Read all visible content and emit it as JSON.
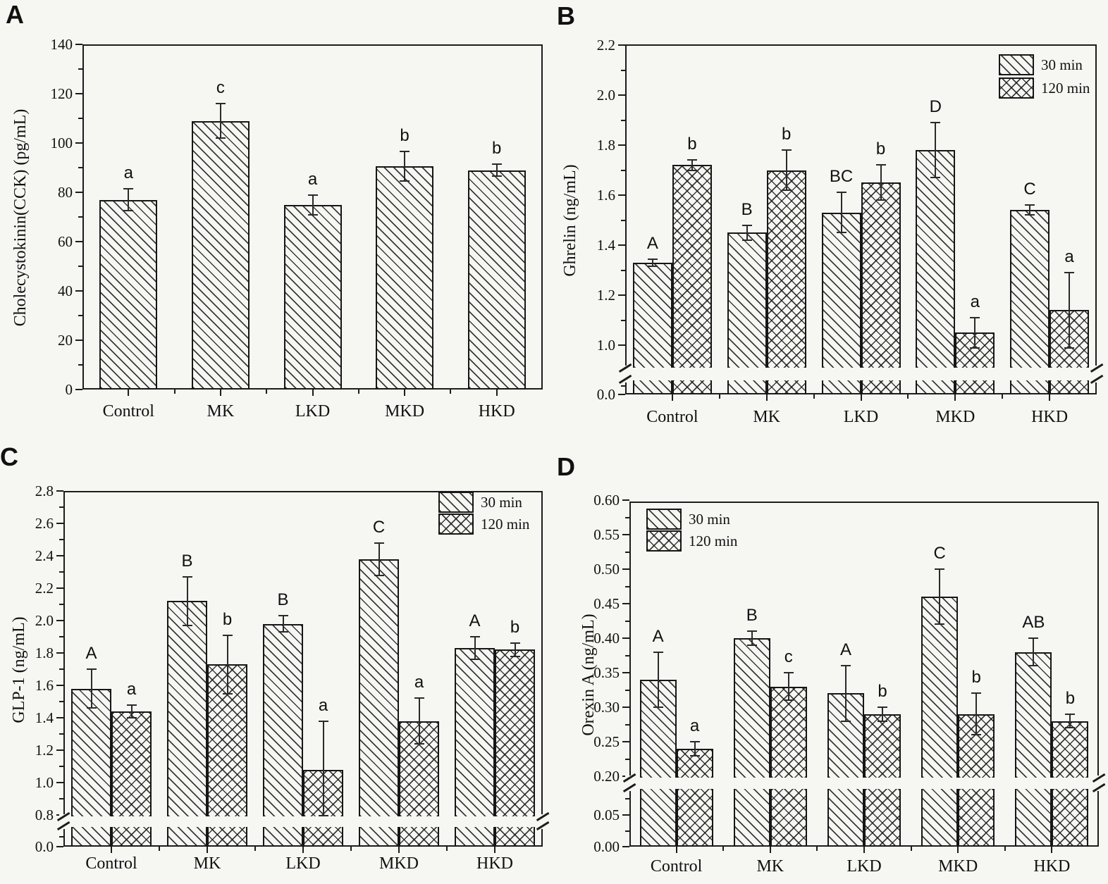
{
  "figure_type": "four-panel appetite hormone bar charts",
  "legend_labels": [
    "30 min",
    "120 min"
  ],
  "chart_data": [
    {
      "panel": "A",
      "type": "bar",
      "ylabel": "Cholecystokinin(CCK) (pg/mL)",
      "categories": [
        "Control",
        "MK",
        "LKD",
        "MKD",
        "HKD"
      ],
      "series": [
        {
          "name": "",
          "hatch": "diagonal",
          "values": [
            77,
            109,
            75,
            90.5,
            89
          ],
          "errors": [
            4.5,
            7,
            4,
            6,
            2.5
          ],
          "sig_letters": [
            "a",
            "c",
            "a",
            "b",
            "b"
          ]
        }
      ],
      "ylim": [
        0,
        140
      ],
      "ytick_step": 20,
      "tick_decimals": 0,
      "axis_break": null,
      "legend": null,
      "grid": false
    },
    {
      "panel": "B",
      "type": "bar",
      "ylabel": "Ghrelin (ng/mL)",
      "categories": [
        "Control",
        "MK",
        "LKD",
        "MKD",
        "HKD"
      ],
      "series": [
        {
          "name": "30 min",
          "hatch": "diagonal",
          "values": [
            1.33,
            1.45,
            1.53,
            1.78,
            1.54
          ],
          "errors": [
            0.015,
            0.03,
            0.08,
            0.11,
            0.02
          ],
          "sig_letters": [
            "A",
            "B",
            "BC",
            "D",
            "C"
          ]
        },
        {
          "name": "120 min",
          "hatch": "cross",
          "values": [
            1.72,
            1.7,
            1.65,
            1.05,
            1.14
          ],
          "errors": [
            0.02,
            0.08,
            0.07,
            0.06,
            0.15
          ],
          "sig_letters": [
            "b",
            "b",
            "b",
            "a",
            "a"
          ]
        }
      ],
      "ylim": [
        1.0,
        2.2
      ],
      "ytick_step": 0.2,
      "tick_decimals": 1,
      "axis_break": {
        "enabled": true,
        "stub_tick_labels": [
          "0.0"
        ]
      },
      "legend": {
        "visible": true,
        "position": "top-right"
      },
      "grid": false
    },
    {
      "panel": "C",
      "type": "bar",
      "ylabel": "GLP-1 (ng/mL)",
      "categories": [
        "Control",
        "MK",
        "LKD",
        "MKD",
        "HKD"
      ],
      "series": [
        {
          "name": "30 min",
          "hatch": "diagonal",
          "values": [
            1.58,
            2.12,
            1.98,
            2.38,
            1.83
          ],
          "errors": [
            0.12,
            0.15,
            0.05,
            0.1,
            0.07
          ],
          "sig_letters": [
            "A",
            "B",
            "B",
            "C",
            "A"
          ]
        },
        {
          "name": "120 min",
          "hatch": "cross",
          "values": [
            1.44,
            1.73,
            1.08,
            1.38,
            1.82
          ],
          "errors": [
            0.04,
            0.18,
            0.3,
            0.14,
            0.04
          ],
          "sig_letters": [
            "a",
            "b",
            "a",
            "a",
            "b"
          ]
        }
      ],
      "ylim": [
        0.8,
        2.8
      ],
      "ytick_step": 0.2,
      "tick_decimals": 1,
      "axis_break": {
        "enabled": true,
        "stub_tick_labels": [
          "0.0"
        ]
      },
      "legend": {
        "visible": true,
        "position": "top-right"
      },
      "grid": false
    },
    {
      "panel": "D",
      "type": "bar",
      "ylabel": "Orexin A (ng/mL)",
      "categories": [
        "Control",
        "MK",
        "LKD",
        "MKD",
        "HKD"
      ],
      "series": [
        {
          "name": "30 min",
          "hatch": "diagonal",
          "values": [
            0.34,
            0.4,
            0.32,
            0.46,
            0.38
          ],
          "errors": [
            0.04,
            0.01,
            0.04,
            0.04,
            0.02
          ],
          "sig_letters": [
            "A",
            "B",
            "A",
            "C",
            "AB"
          ]
        },
        {
          "name": "120 min",
          "hatch": "cross",
          "values": [
            0.24,
            0.33,
            0.29,
            0.29,
            0.28
          ],
          "errors": [
            0.01,
            0.02,
            0.01,
            0.03,
            0.01
          ],
          "sig_letters": [
            "a",
            "c",
            "b",
            "b",
            "b"
          ]
        }
      ],
      "ylim": [
        0.2,
        0.6
      ],
      "ytick_step": 0.05,
      "tick_decimals": 2,
      "axis_break": {
        "enabled": true,
        "stub_tick_labels": [
          "0.05",
          "0.00"
        ]
      },
      "legend": {
        "visible": true,
        "position": "top-left"
      },
      "grid": false
    }
  ],
  "ink_color": "#1c1c1c",
  "background_color": "#f6f6f3"
}
